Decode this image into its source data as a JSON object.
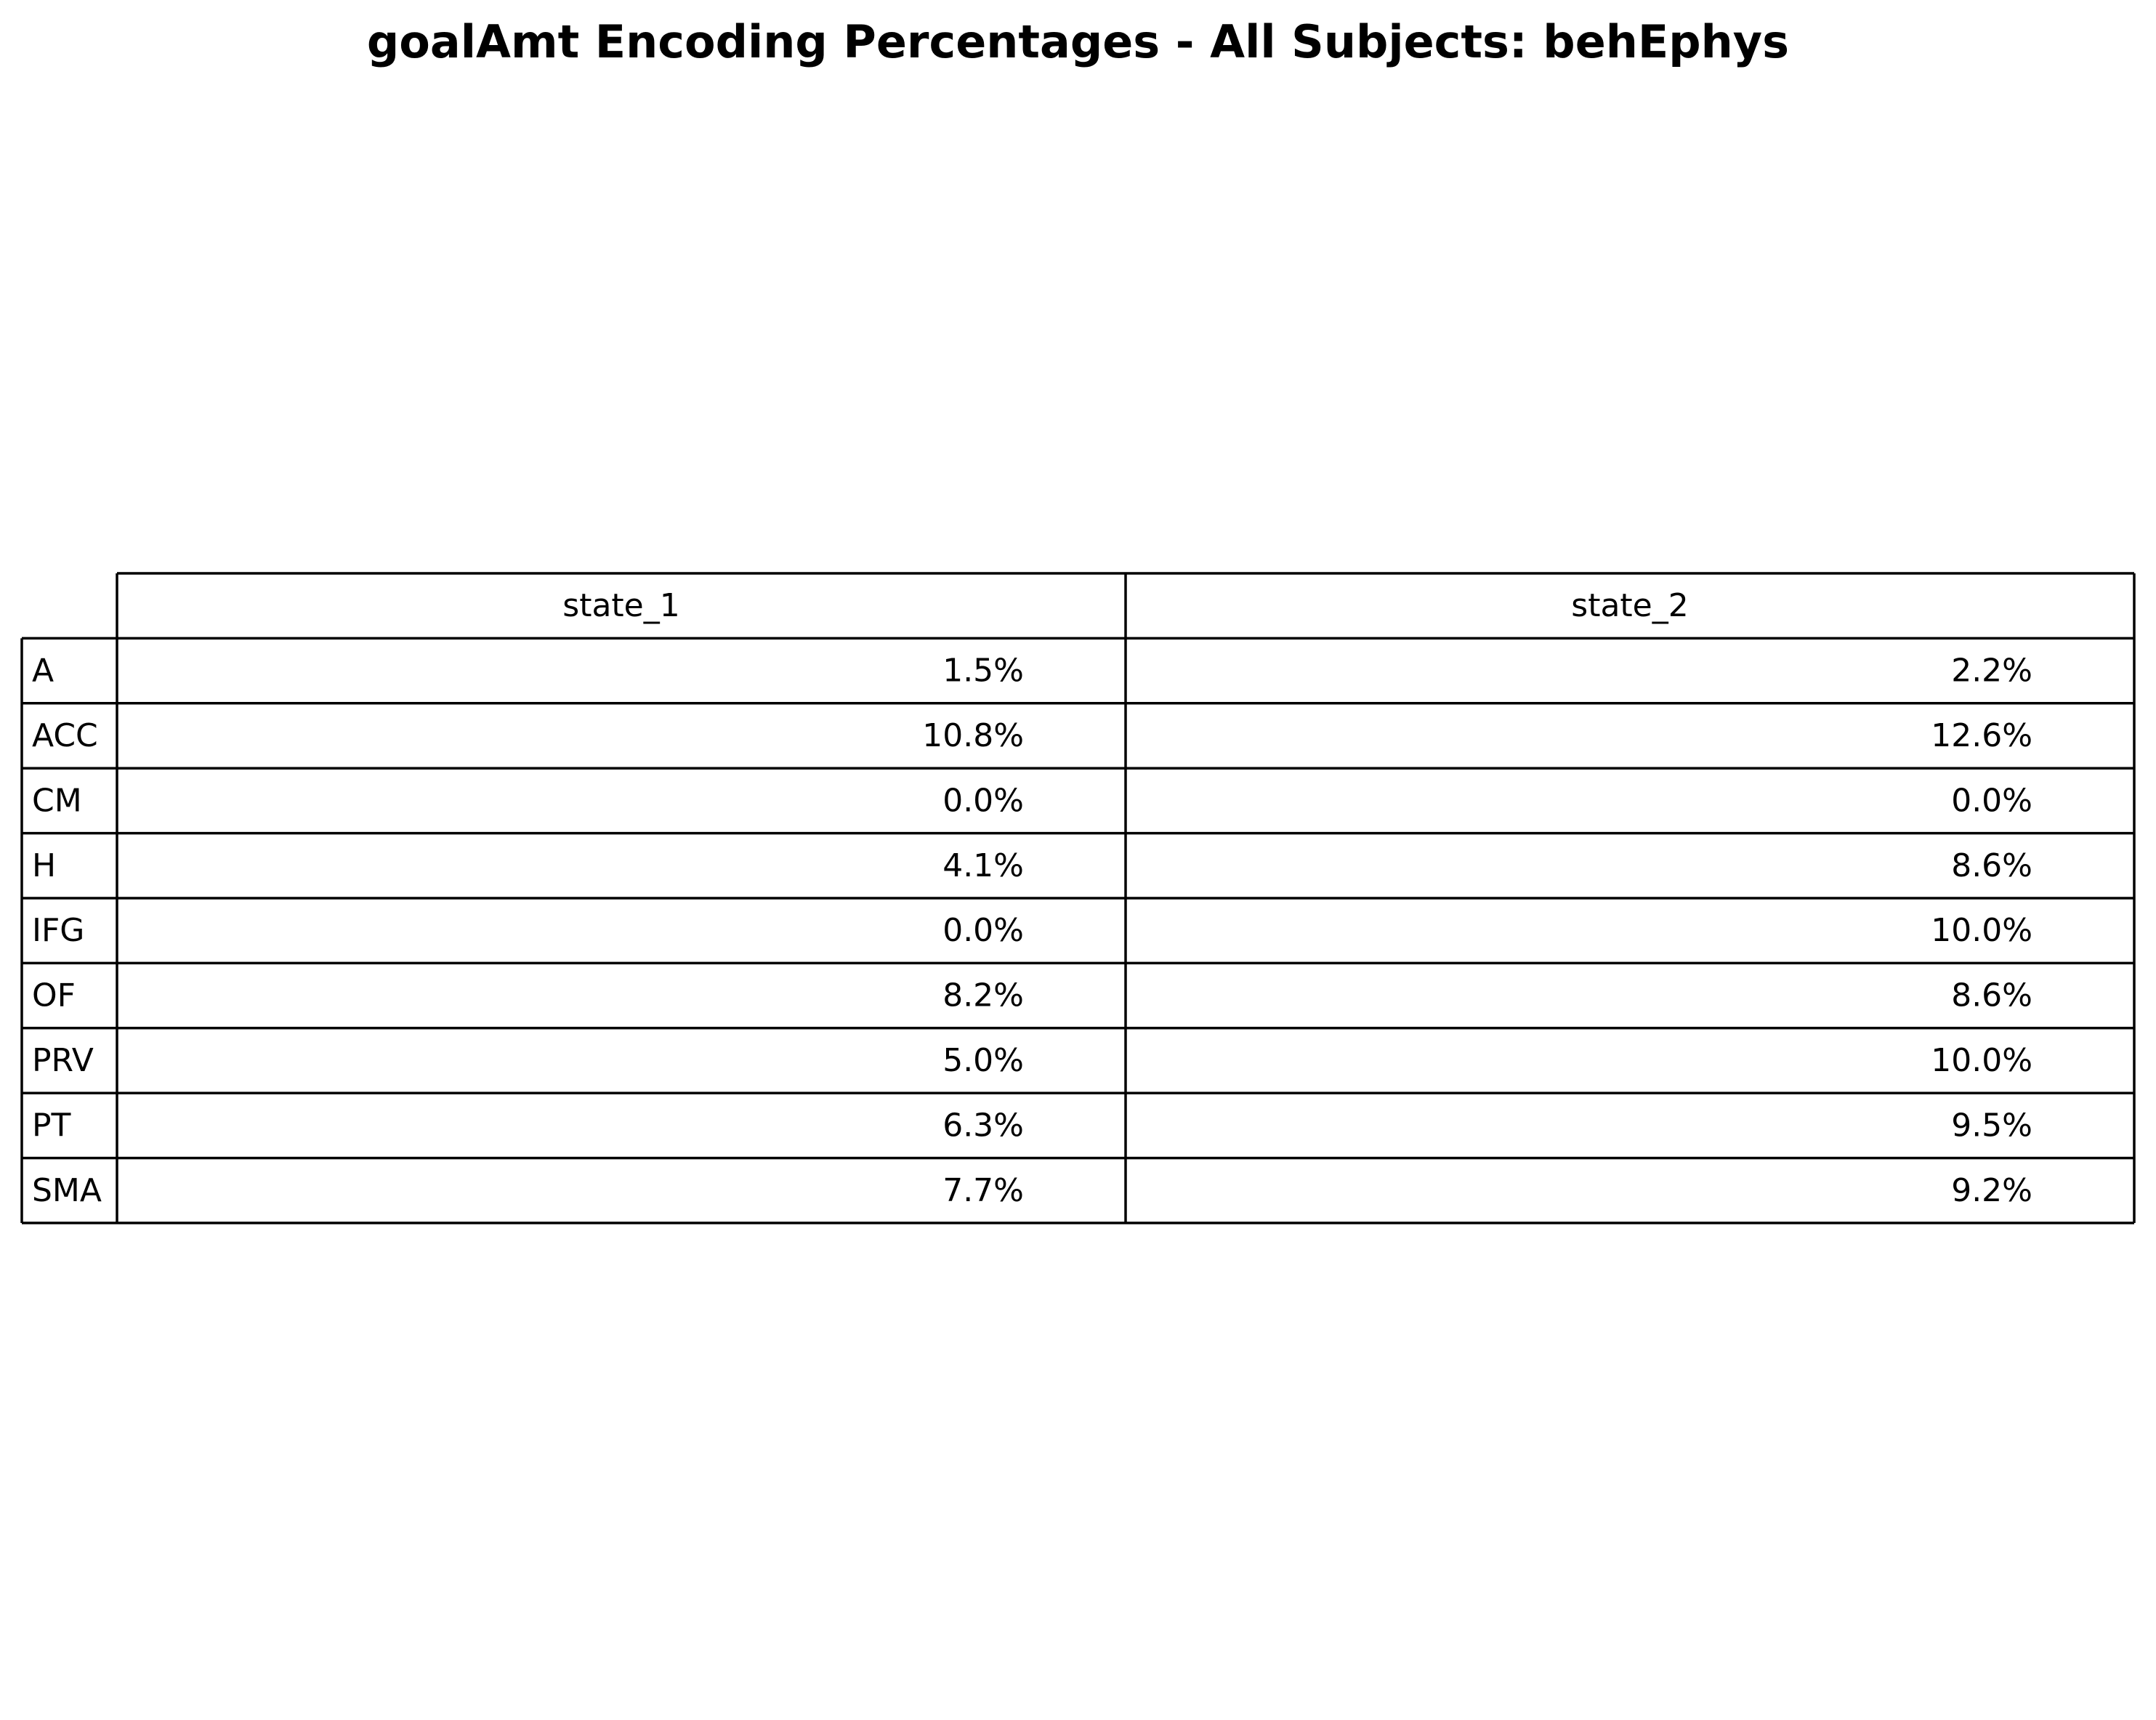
{
  "chart_data": {
    "type": "table",
    "title": "goalAmt Encoding Percentages - All Subjects: behEphys",
    "columns": [
      "state_1",
      "state_2"
    ],
    "rows": [
      {
        "label": "A",
        "values": [
          "1.5%",
          "2.2%"
        ]
      },
      {
        "label": "ACC",
        "values": [
          "10.8%",
          "12.6%"
        ]
      },
      {
        "label": "CM",
        "values": [
          "0.0%",
          "0.0%"
        ]
      },
      {
        "label": "H",
        "values": [
          "4.1%",
          "8.6%"
        ]
      },
      {
        "label": "IFG",
        "values": [
          "0.0%",
          "10.0%"
        ]
      },
      {
        "label": "OF",
        "values": [
          "8.2%",
          "8.6%"
        ]
      },
      {
        "label": "PRV",
        "values": [
          "5.0%",
          "10.0%"
        ]
      },
      {
        "label": "PT",
        "values": [
          "6.3%",
          "9.5%"
        ]
      },
      {
        "label": "SMA",
        "values": [
          "7.7%",
          "9.2%"
        ]
      }
    ]
  }
}
